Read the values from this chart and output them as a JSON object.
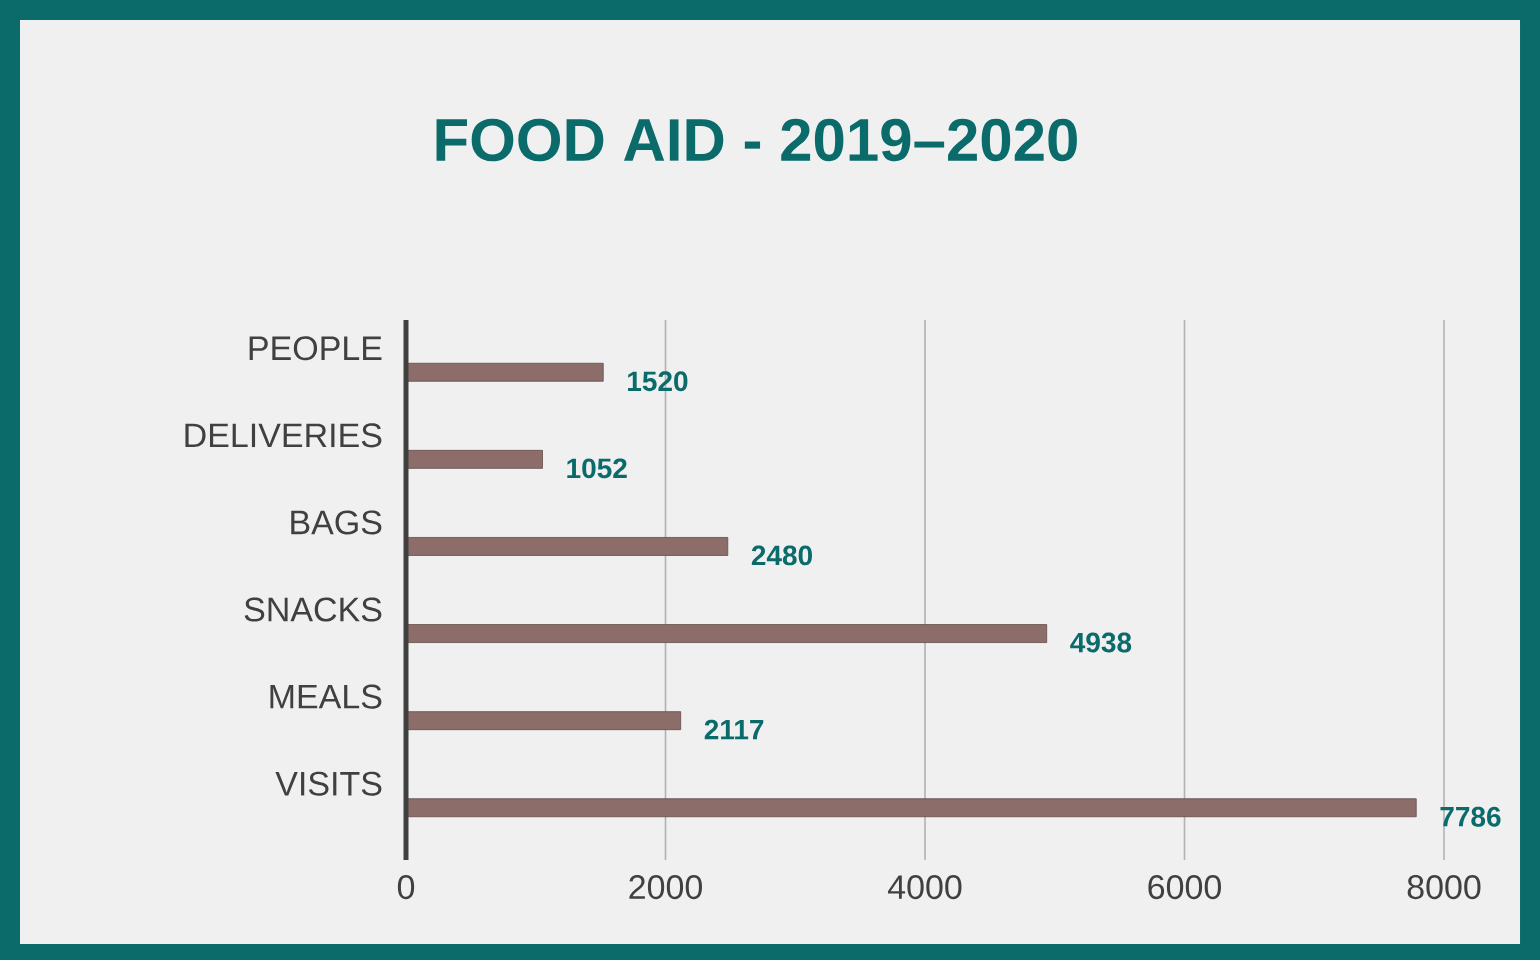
{
  "chart_data": {
    "type": "bar",
    "orientation": "horizontal",
    "title": "FOOD AID -  2019–2020",
    "categories": [
      "PEOPLE",
      "DELIVERIES",
      "BAGS",
      "SNACKS",
      "MEALS",
      "VISITS"
    ],
    "values": [
      1520,
      1052,
      2480,
      4938,
      2117,
      7786
    ],
    "color": "#8c6d6a",
    "xlim": [
      0,
      8000
    ],
    "xticks": [
      0,
      2000,
      4000,
      6000,
      8000
    ],
    "grid": "x",
    "data_labels": true
  }
}
